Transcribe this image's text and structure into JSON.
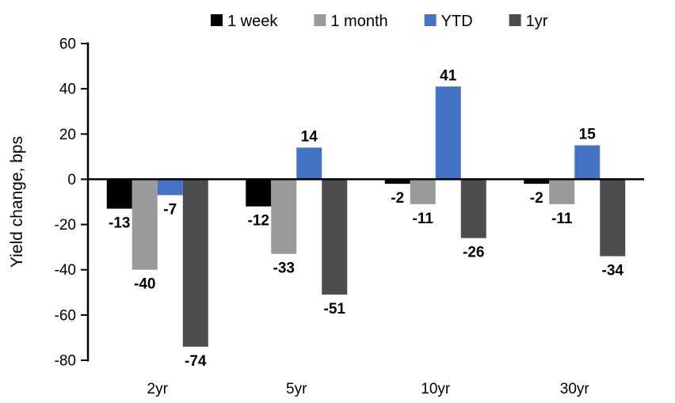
{
  "chart_data": {
    "type": "bar",
    "title": "",
    "ylabel": "Yield change, bps",
    "xlabel": "",
    "categories": [
      "2yr",
      "5yr",
      "10yr",
      "30yr"
    ],
    "series": [
      {
        "name": "1 week",
        "color": "#000000",
        "values": [
          -13,
          -12,
          -2,
          -2
        ]
      },
      {
        "name": "1 month",
        "color": "#9A9A9A",
        "values": [
          -40,
          -33,
          -11,
          -11
        ]
      },
      {
        "name": "YTD",
        "color": "#4472C4",
        "values": [
          -7,
          14,
          41,
          15
        ]
      },
      {
        "name": "1yr",
        "color": "#4D4D4D",
        "values": [
          -74,
          -51,
          -26,
          -34
        ]
      }
    ],
    "ylim": [
      -80,
      60
    ],
    "ytick_step": 20,
    "ytick_labels": [
      "60",
      "40",
      "20",
      "0",
      "-20",
      "-40",
      "-60",
      "-80"
    ],
    "value_labels": true,
    "legend_position": "top",
    "grid": false,
    "axis_color": "#000000",
    "background_color": "#FFFFFF"
  }
}
